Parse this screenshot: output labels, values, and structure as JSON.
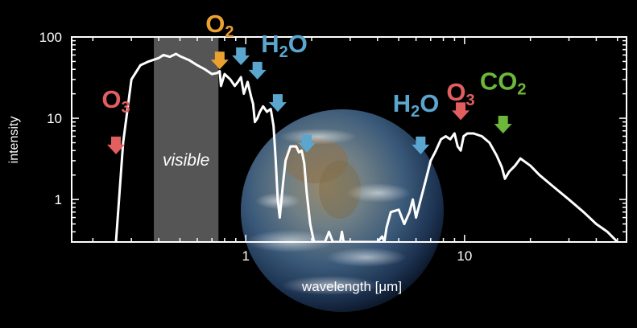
{
  "chart_data": {
    "type": "line",
    "title": "",
    "xlabel": "wavelength [μm]",
    "ylabel": "intensity",
    "x_scale": "log",
    "y_scale": "log",
    "xlim": [
      0.16,
      55
    ],
    "ylim": [
      0.3,
      100
    ],
    "x_ticks": [
      {
        "value": 1,
        "label": "1"
      },
      {
        "value": 10,
        "label": "10"
      }
    ],
    "y_ticks": [
      {
        "value": 1,
        "label": "1"
      },
      {
        "value": 10,
        "label": "10"
      },
      {
        "value": 100,
        "label": "100"
      }
    ],
    "grid": false,
    "legend": "none",
    "shaded_region": {
      "label": "visible",
      "x_range": [
        0.38,
        0.75
      ],
      "color": "#555555"
    },
    "series": [
      {
        "color": "#ffffff",
        "x": [
          0.255,
          0.275,
          0.3,
          0.33,
          0.36,
          0.4,
          0.42,
          0.45,
          0.48,
          0.5,
          0.55,
          0.6,
          0.65,
          0.7,
          0.74,
          0.76,
          0.77,
          0.8,
          0.85,
          0.89,
          0.92,
          0.95,
          0.98,
          1.02,
          1.06,
          1.08,
          1.1,
          1.13,
          1.16,
          1.2,
          1.25,
          1.3,
          1.34,
          1.37,
          1.4,
          1.43,
          1.48,
          1.52,
          1.6,
          1.7,
          1.75,
          1.8,
          1.85,
          1.9,
          1.97,
          2.05,
          2.1,
          2.2,
          2.3,
          2.4,
          2.5,
          2.6,
          2.7,
          2.75,
          2.8,
          2.9,
          3.0,
          3.3,
          3.6,
          4.0,
          4.2,
          4.3,
          4.4,
          4.6,
          5.0,
          5.3,
          5.6,
          5.8,
          6.0,
          6.3,
          6.6,
          7.0,
          7.4,
          7.8,
          8.2,
          8.6,
          9.0,
          9.3,
          9.6,
          9.9,
          10.3,
          11.0,
          12.0,
          13.0,
          14.0,
          14.8,
          15.3,
          16.0,
          17.0,
          18.0,
          20.0,
          22.0,
          25.0,
          30.0,
          35.0,
          40.0,
          45.0,
          50.0
        ],
        "y": [
          0.3,
          5,
          30,
          45,
          50,
          55,
          60,
          57,
          62,
          58,
          52,
          45,
          40,
          35,
          36,
          38,
          25,
          35,
          30,
          25,
          28,
          32,
          20,
          28,
          18,
          15,
          9,
          10,
          12,
          14,
          12,
          13,
          8,
          3,
          1,
          0.6,
          1.6,
          3,
          4.5,
          4.5,
          3.8,
          4,
          2.8,
          1.2,
          0.5,
          0.3,
          0.3,
          0.3,
          0.3,
          0.4,
          0.3,
          0.3,
          0.3,
          0.4,
          0.3,
          0.3,
          0.3,
          0.3,
          0.3,
          0.3,
          0.35,
          0.3,
          0.45,
          0.7,
          0.75,
          0.5,
          0.7,
          1.0,
          0.6,
          1.0,
          1.6,
          3.0,
          4.0,
          5.5,
          6.0,
          5.5,
          6.5,
          4.5,
          4.0,
          6.0,
          6.5,
          6.5,
          6.0,
          5.0,
          3.5,
          2.5,
          1.8,
          2.2,
          2.6,
          3.2,
          2.6,
          2.0,
          1.5,
          1.0,
          0.7,
          0.5,
          0.4,
          0.3
        ]
      }
    ],
    "annotations": [
      {
        "label_main": "O",
        "label_sub": "3",
        "color": "#e35e5e",
        "label_x": 0.255,
        "label_y": 13.5,
        "arrow_x": 0.255,
        "arrow_tip_y": 3.6
      },
      {
        "label_main": "O",
        "label_sub": "2",
        "color": "#eaa130",
        "label_x": 0.76,
        "label_y": 115,
        "arrow_x": 0.76,
        "arrow_tip_y": 40
      },
      {
        "label_main": "H",
        "label_sub": "2",
        "label_suffix": "O",
        "color": "#5ba6cf",
        "label_x": 1.5,
        "label_y": 65,
        "arrows": [
          {
            "x": 0.95,
            "tip_y": 45
          },
          {
            "x": 1.13,
            "tip_y": 30
          },
          {
            "x": 1.4,
            "tip_y": 12
          },
          {
            "x": 1.9,
            "tip_y": 3.8
          }
        ]
      },
      {
        "label_main": "H",
        "label_sub": "2",
        "label_suffix": "O",
        "color": "#5ba6cf",
        "label_x": 6.0,
        "label_y": 12,
        "arrow_x": 6.3,
        "arrow_tip_y": 3.6
      },
      {
        "label_main": "O",
        "label_sub": "3",
        "color": "#e35e5e",
        "label_x": 9.6,
        "label_y": 16.5,
        "arrow_x": 9.6,
        "arrow_tip_y": 9.5
      },
      {
        "label_main": "CO",
        "label_sub": "2",
        "color": "#6db83a",
        "label_x": 15.0,
        "label_y": 22.5,
        "arrow_x": 15.0,
        "arrow_tip_y": 6.5
      }
    ]
  }
}
